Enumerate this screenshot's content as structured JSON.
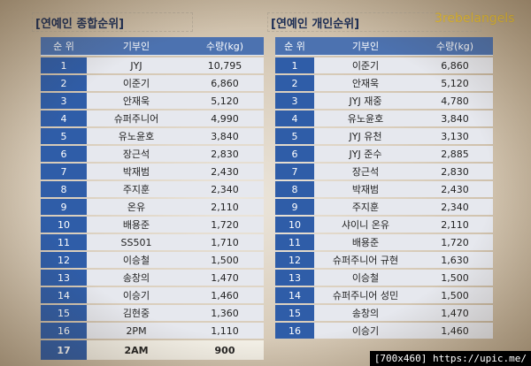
{
  "left": {
    "title": "[연예인 종합순위]",
    "headers": [
      "순 위",
      "기부인",
      "수량(kg)"
    ],
    "rows": [
      [
        "1",
        "JYJ",
        "10,795"
      ],
      [
        "2",
        "이준기",
        "6,860"
      ],
      [
        "3",
        "안재욱",
        "5,120"
      ],
      [
        "4",
        "슈퍼주니어",
        "4,990"
      ],
      [
        "5",
        "유노윤호",
        "3,840"
      ],
      [
        "6",
        "장근석",
        "2,830"
      ],
      [
        "7",
        "박재범",
        "2,430"
      ],
      [
        "8",
        "주지훈",
        "2,340"
      ],
      [
        "9",
        "온유",
        "2,110"
      ],
      [
        "10",
        "배용준",
        "1,720"
      ],
      [
        "11",
        "SS501",
        "1,710"
      ],
      [
        "12",
        "이승철",
        "1,500"
      ],
      [
        "13",
        "송창의",
        "1,470"
      ],
      [
        "14",
        "이승기",
        "1,460"
      ],
      [
        "15",
        "김현중",
        "1,360"
      ],
      [
        "16",
        "2PM",
        "1,110"
      ],
      [
        "17",
        "2AM",
        "900"
      ]
    ]
  },
  "right": {
    "title": "[연예인 개인순위]",
    "headers": [
      "순 위",
      "기부인",
      "수량(kg)"
    ],
    "rows": [
      [
        "1",
        "이준기",
        "6,860"
      ],
      [
        "2",
        "안재욱",
        "5,120"
      ],
      [
        "3",
        "JYJ 재중",
        "4,780"
      ],
      [
        "4",
        "유노윤호",
        "3,840"
      ],
      [
        "5",
        "JYJ 유천",
        "3,130"
      ],
      [
        "6",
        "JYJ 준수",
        "2,885"
      ],
      [
        "7",
        "장근석",
        "2,830"
      ],
      [
        "8",
        "박재범",
        "2,430"
      ],
      [
        "9",
        "주지훈",
        "2,340"
      ],
      [
        "10",
        "샤이니 온유",
        "2,110"
      ],
      [
        "11",
        "배용준",
        "1,720"
      ],
      [
        "12",
        "슈퍼주니어 규현",
        "1,630"
      ],
      [
        "13",
        "이승철",
        "1,500"
      ],
      [
        "14",
        "슈퍼주니어 성민",
        "1,500"
      ],
      [
        "15",
        "송창의",
        "1,470"
      ],
      [
        "16",
        "이승기",
        "1,460"
      ]
    ]
  },
  "watermark": "3rebelangels",
  "credit": "[700x460] https://upic.me/"
}
